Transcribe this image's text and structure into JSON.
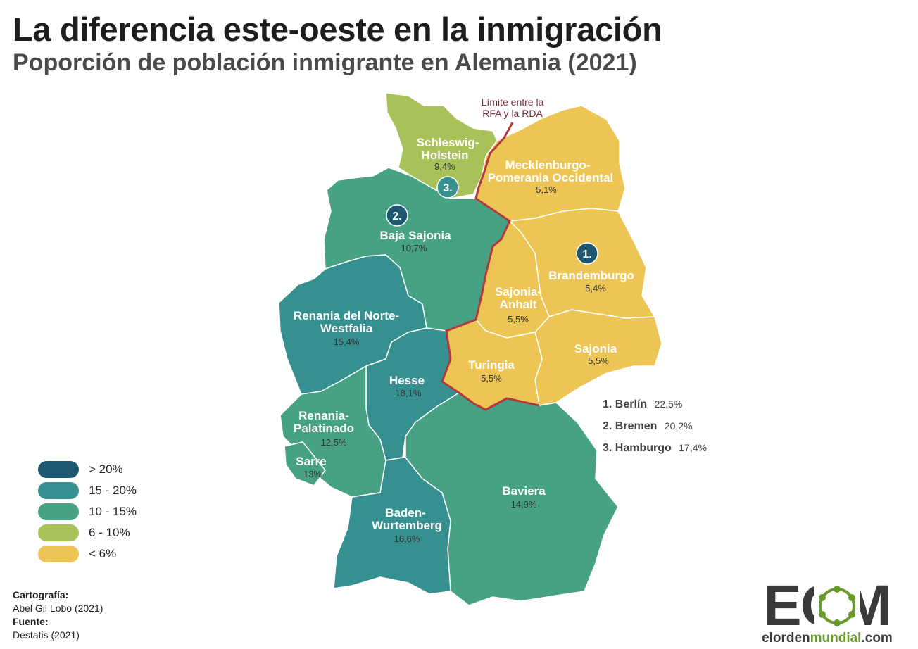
{
  "title": "La diferencia este-oeste en la inmigración",
  "subtitle": "Poporción de población inmigrante en Alemania (2021)",
  "colors": {
    "gt20": "#1e5870",
    "c15_20": "#35908f",
    "c10_15": "#46a283",
    "c6_10": "#a8c158",
    "lt6": "#ecc555",
    "border": "#b23a3f"
  },
  "regions": [
    {
      "id": "schleswig-holstein",
      "name_lines": [
        "Schleswig-",
        "Holstein"
      ],
      "value": "9,4%",
      "class": "6 - 10%"
    },
    {
      "id": "mecklenburg",
      "name_lines": [
        "Mecklenburgo-",
        "Pomerania Occidental"
      ],
      "value": "5,1%",
      "class": "< 6%"
    },
    {
      "id": "baja-sajonia",
      "name_lines": [
        "Baja Sajonia"
      ],
      "value": "10,7%",
      "class": "10 - 15%"
    },
    {
      "id": "brandemburgo",
      "name_lines": [
        "Brandemburgo"
      ],
      "value": "5,4%",
      "class": "< 6%"
    },
    {
      "id": "sajonia-anhalt",
      "name_lines": [
        "Sajonia-",
        "Anhalt"
      ],
      "value": "5,5%",
      "class": "< 6%"
    },
    {
      "id": "renania-norte",
      "name_lines": [
        "Renania del Norte-",
        "Westfalia"
      ],
      "value": "15,4%",
      "class": "15 - 20%"
    },
    {
      "id": "sajonia",
      "name_lines": [
        "Sajonia"
      ],
      "value": "5,5%",
      "class": "< 6%"
    },
    {
      "id": "turingia",
      "name_lines": [
        "Turingia"
      ],
      "value": "5,5%",
      "class": "< 6%"
    },
    {
      "id": "hesse",
      "name_lines": [
        "Hesse"
      ],
      "value": "18,1%",
      "class": "15 - 20%"
    },
    {
      "id": "renania-palatinado",
      "name_lines": [
        "Renania-",
        "Palatinado"
      ],
      "value": "12,5%",
      "class": "10 - 15%"
    },
    {
      "id": "sarre",
      "name_lines": [
        "Sarre"
      ],
      "value": "13%",
      "class": "10 - 15%"
    },
    {
      "id": "baviera",
      "name_lines": [
        "Baviera"
      ],
      "value": "14,9%",
      "class": "10 - 15%"
    },
    {
      "id": "baden",
      "name_lines": [
        "Baden-",
        "Wurtemberg"
      ],
      "value": "16,6%",
      "class": "15 - 20%"
    }
  ],
  "city_states": [
    {
      "rank": "1.",
      "name": "Berlín",
      "value": "22,5%"
    },
    {
      "rank": "2.",
      "name": "Bremen",
      "value": "20,2%"
    },
    {
      "rank": "3.",
      "name": "Hamburgo",
      "value": "17,4%"
    }
  ],
  "city_markers": [
    "1.",
    "2.",
    "3."
  ],
  "border_label": [
    "Límite entre la",
    "RFA y la RDA"
  ],
  "legend": [
    {
      "label": "> 20%",
      "color": "#1e5870"
    },
    {
      "label": "15 - 20%",
      "color": "#35908f"
    },
    {
      "label": "10 - 15%",
      "color": "#46a283"
    },
    {
      "label": "6 - 10%",
      "color": "#a8c158"
    },
    {
      "label": "< 6%",
      "color": "#ecc555"
    }
  ],
  "credits": {
    "cartography_heading": "Cartografía:",
    "cartography": "Abel Gil Lobo (2021)",
    "source_heading": "Fuente:",
    "source": "Destatis (2021)"
  },
  "logo": {
    "letters": "EOM",
    "site_a": "elorden",
    "site_b": "mundial",
    "site_c": ".com"
  }
}
